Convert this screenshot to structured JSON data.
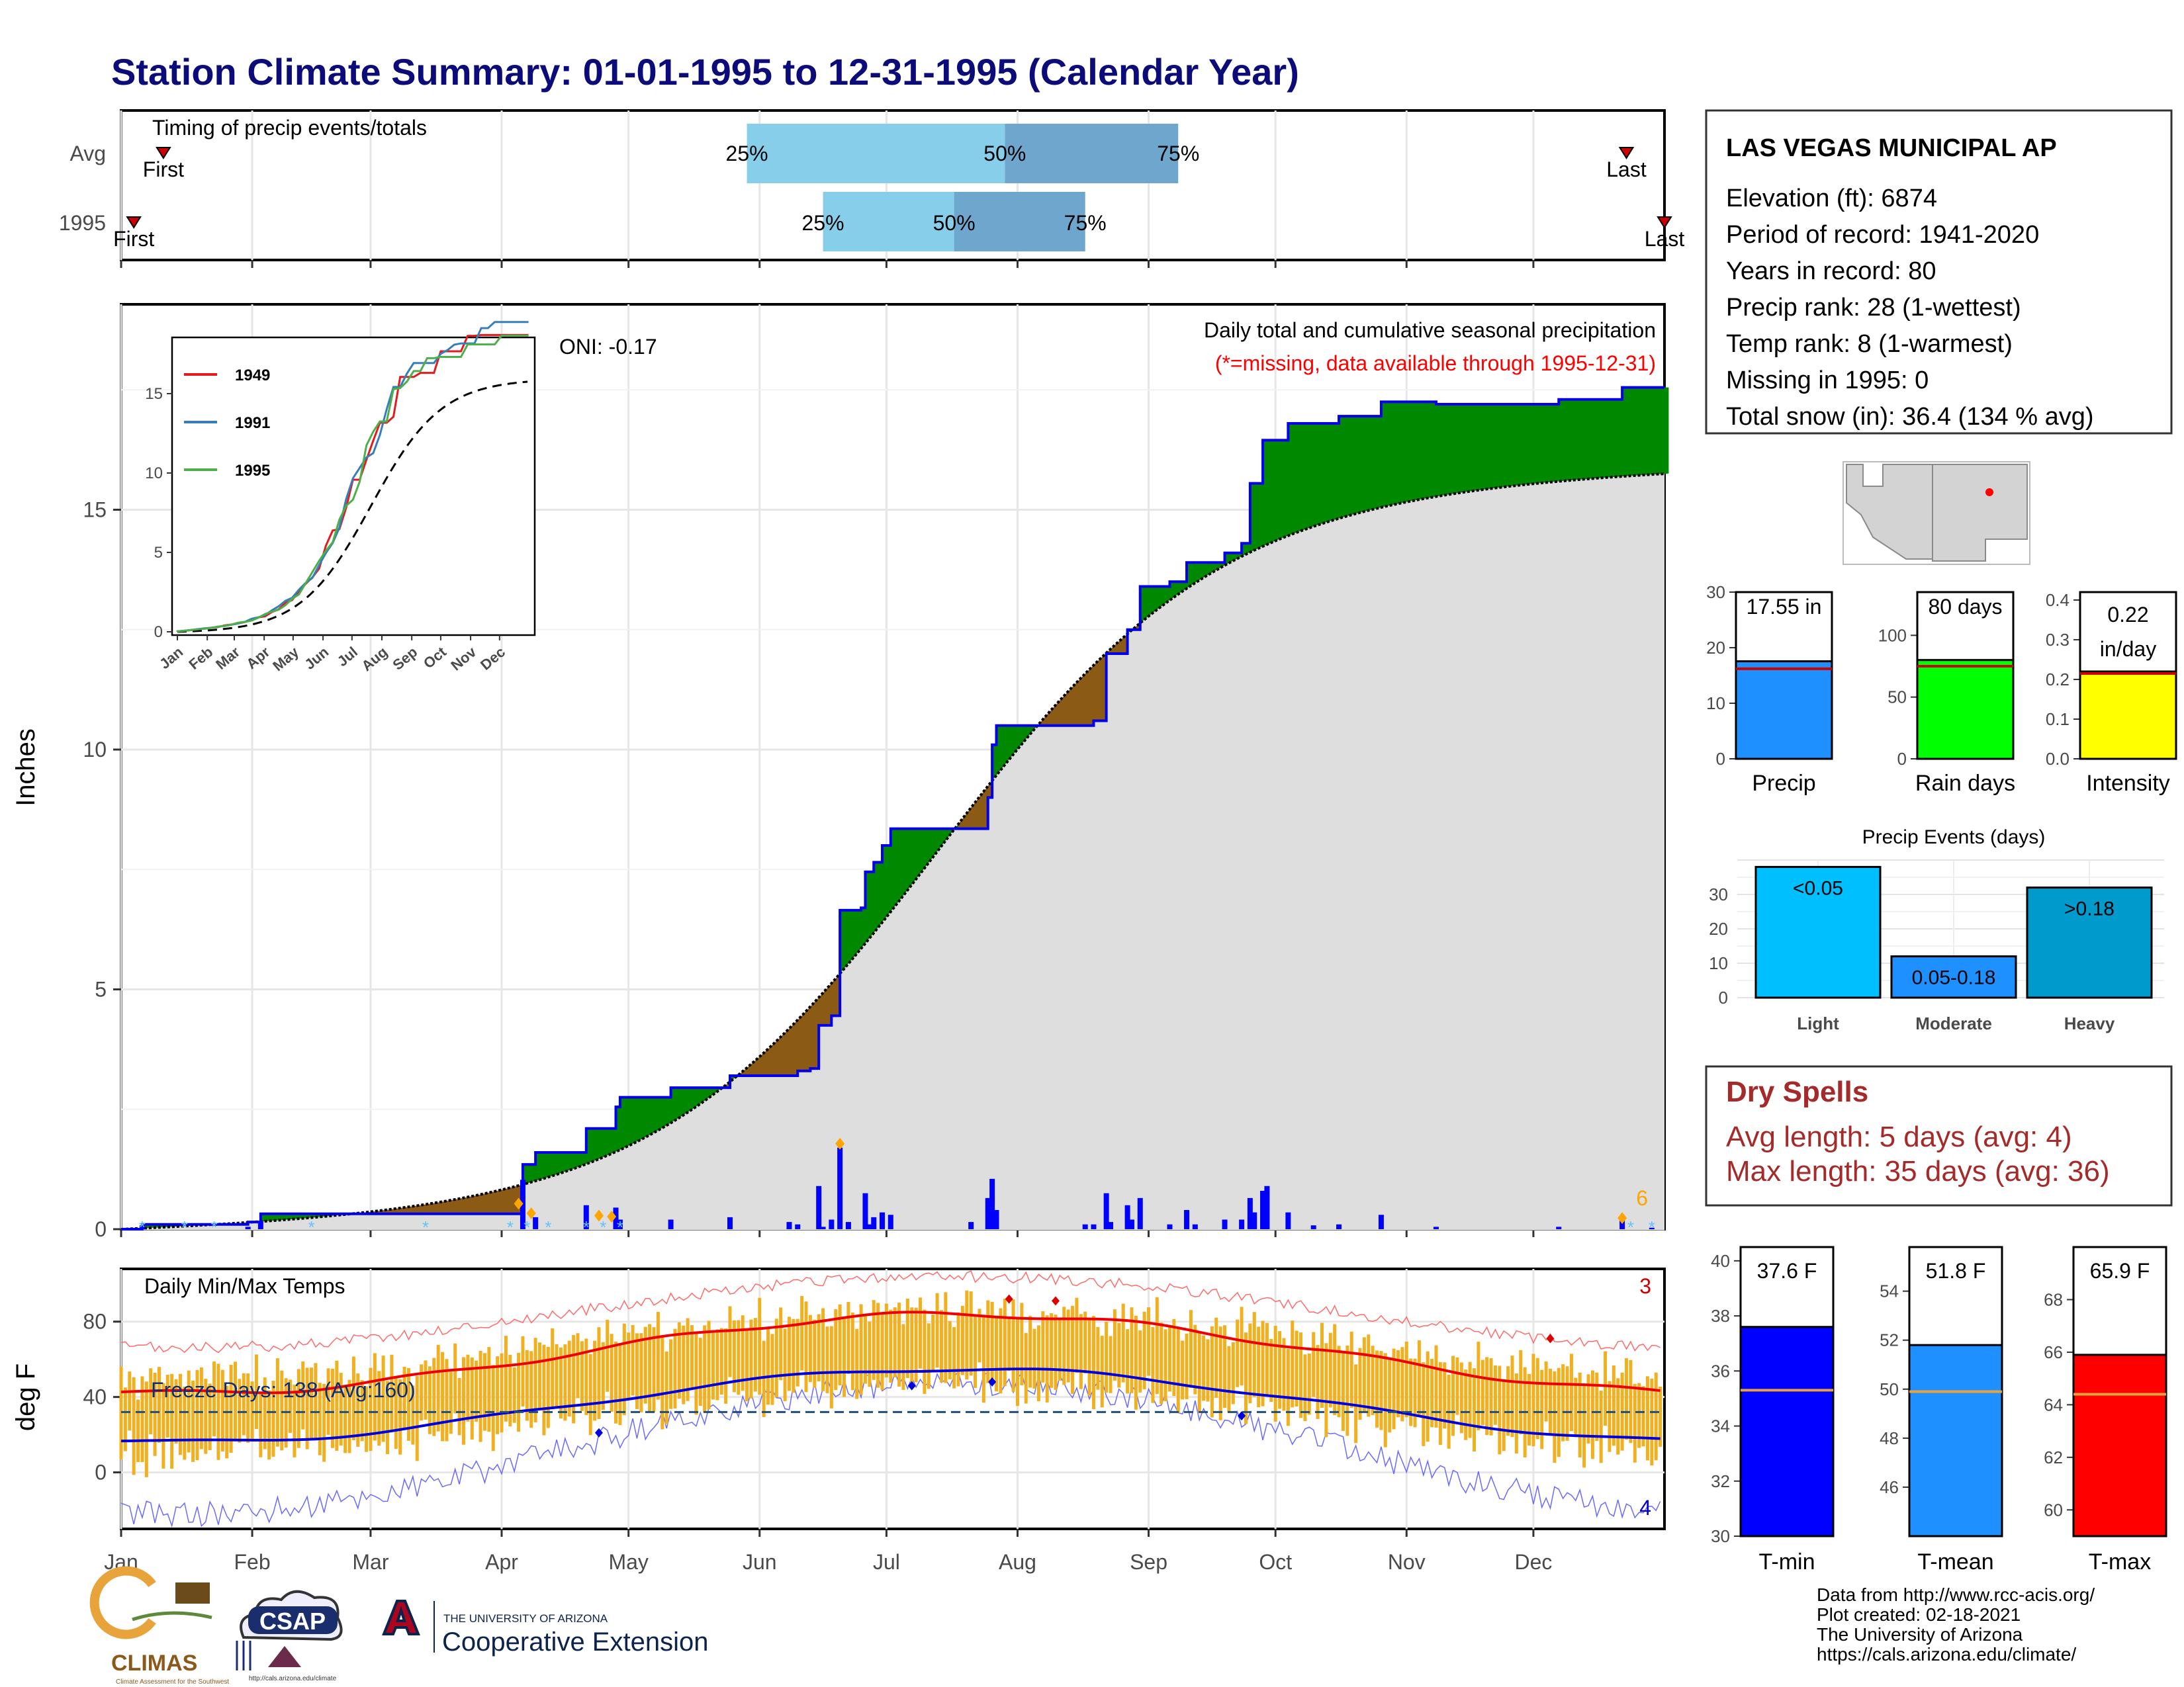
{
  "title": "Station Climate Summary: 01-01-1995 to 12-31-1995 (Calendar Year)",
  "months": [
    "Jan",
    "Feb",
    "Mar",
    "Apr",
    "May",
    "Jun",
    "Jul",
    "Aug",
    "Sep",
    "Oct",
    "Nov",
    "Dec"
  ],
  "timing": {
    "label": "Timing of precip events/totals",
    "rows": [
      "Avg",
      "1995"
    ],
    "avg": {
      "p25_day": 148,
      "p50_day": 209,
      "p75_day": 250,
      "first_day": 10,
      "last_day": 356
    },
    "year": {
      "p25_day": 166,
      "p50_day": 197,
      "p75_day": 228,
      "first_day": 3,
      "last_day": 365
    },
    "pct_labels": [
      "25%",
      "50%",
      "75%"
    ],
    "first_label": "First",
    "last_label": "Last"
  },
  "precip": {
    "title": "Daily total and cumulative seasonal precipitation",
    "subtitle": "(*=missing, data available through 1995-12-31)",
    "oni": "ONI: -0.17",
    "ylabel": "Inches",
    "yticks": [
      0,
      5,
      10,
      15
    ],
    "count_label": "6"
  },
  "inset": {
    "yticks": [
      0,
      5,
      10,
      15
    ],
    "months": [
      "Jan",
      "Feb",
      "Mar",
      "Apr",
      "May",
      "Jun",
      "Jul",
      "Aug",
      "Sep",
      "Oct",
      "Nov",
      "Dec"
    ],
    "legend": [
      "1949",
      "1991",
      "1995"
    ],
    "colors": [
      "#e41a1c",
      "#377eb8",
      "#4daf4a"
    ]
  },
  "temps": {
    "title": "Daily Min/Max Temps",
    "ylabel": "deg F",
    "yticks": [
      0,
      40,
      80
    ],
    "freeze": "Freeze Days: 138 (Avg:160)",
    "record_high_count": "3",
    "record_low_count": "4"
  },
  "station": {
    "name": "LAS VEGAS MUNICIPAL AP",
    "lines": [
      "Elevation (ft): 6874",
      "Period of record: 1941-2020",
      "Years in record: 80",
      "Precip rank: 28 (1-wettest)",
      "Temp rank: 8 (1-warmest)",
      "Missing in 1995: 0",
      "Total snow (in): 36.4 (134 % avg)"
    ]
  },
  "bars": {
    "precip": {
      "label": "Precip",
      "value_label": "17.55 in",
      "value": 17.55,
      "avg": 16.2,
      "ymax": 30,
      "yticks": [
        0,
        10,
        20,
        30
      ],
      "color": "#1e90ff"
    },
    "raindays": {
      "label": "Rain days",
      "value_label": "80 days",
      "value": 80,
      "avg": 75,
      "ymax": 135,
      "yticks": [
        0,
        50,
        100
      ],
      "color": "#00ff00"
    },
    "intensity": {
      "label": "Intensity",
      "value_label": "0.22",
      "value_label2": "in/day",
      "value": 0.22,
      "avg": 0.215,
      "ymax": 0.42,
      "yticks": [
        "0.0",
        "0.1",
        "0.2",
        "0.3",
        "0.4"
      ],
      "color": "#ffff00"
    }
  },
  "events": {
    "title": "Precip Events (days)",
    "categories": [
      "Light",
      "Moderate",
      "Heavy"
    ],
    "labels": [
      "<0.05",
      "0.05-0.18",
      ">0.18"
    ],
    "values": [
      38,
      12,
      32
    ],
    "colors": [
      "#00bfff",
      "#1e90ff",
      "#009acd"
    ],
    "yticks": [
      0,
      10,
      20,
      30
    ]
  },
  "dry": {
    "title": "Dry Spells",
    "avg": "Avg length: 5 days (avg: 4)",
    "max": "Max length: 35 days (avg: 36)"
  },
  "tbars": [
    {
      "label": "T-min",
      "value_label": "37.6 F",
      "value": 37.6,
      "avg": 35.3,
      "ymin": 30,
      "ymax": 40.5,
      "yticks": [
        30,
        32,
        34,
        36,
        38,
        40
      ],
      "color": "#0000ff"
    },
    {
      "label": "T-mean",
      "value_label": "51.8 F",
      "value": 51.8,
      "avg": 49.9,
      "ymin": 44,
      "ymax": 55.8,
      "yticks": [
        46,
        48,
        50,
        52,
        54
      ],
      "color": "#1e90ff"
    },
    {
      "label": "T-max",
      "value_label": "65.9 F",
      "value": 65.9,
      "avg": 64.4,
      "ymin": 59,
      "ymax": 70,
      "yticks": [
        60,
        62,
        64,
        66,
        68
      ],
      "color": "#ff0000"
    }
  ],
  "footer": {
    "credits": [
      "Data from http://www.rcc-acis.org/",
      "Plot created: 02-18-2021",
      "The University of Arizona",
      "https://cals.arizona.edu/climate/"
    ],
    "climas": "CLIMAS",
    "climas_sub": "Climate Assessment for the Southwest",
    "csap": "CSAP",
    "csap_url": "http://cals.arizona.edu/climate",
    "ua_line1": "THE UNIVERSITY OF ARIZONA",
    "ua_line2": "Cooperative Extension"
  }
}
